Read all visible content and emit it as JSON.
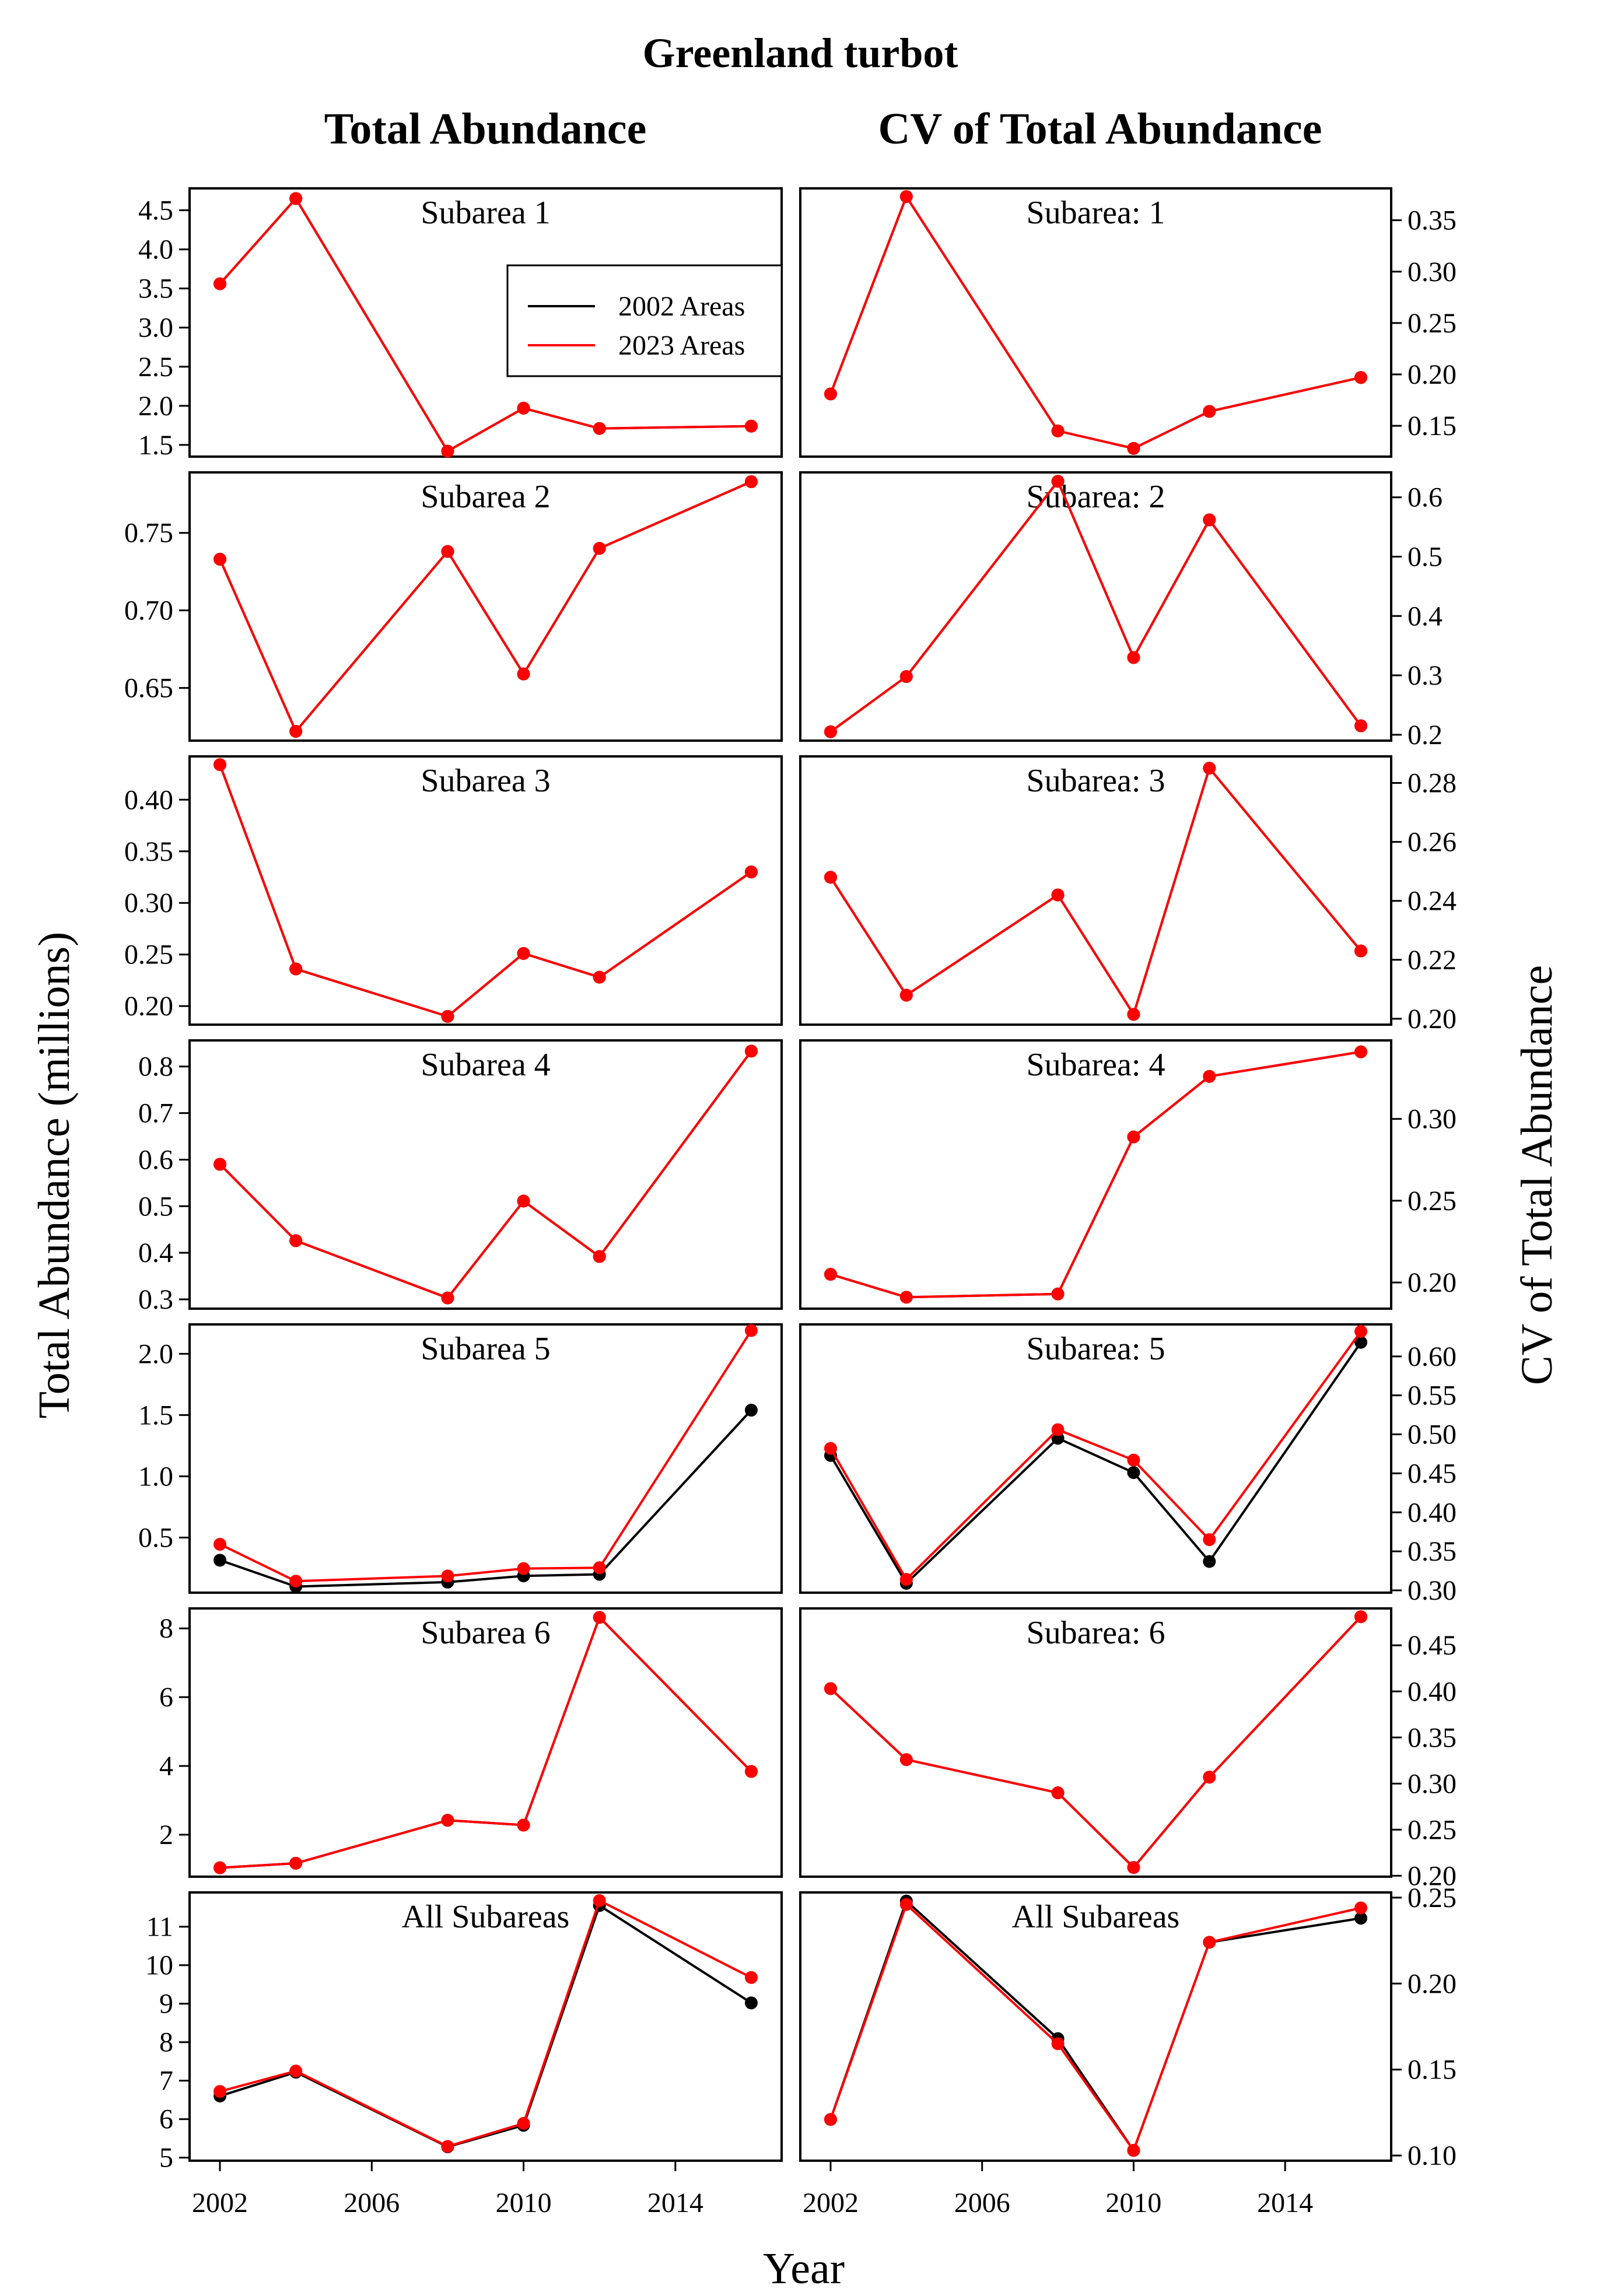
{
  "figure": {
    "title": "Greenland turbot",
    "col_titles": [
      "Total Abundance",
      "CV of Total Abundance"
    ],
    "ylabel_left": "Total Abundance (millions)",
    "ylabel_right": "CV of Total Abundance",
    "xlabel": "Year"
  },
  "legend": {
    "entries": [
      {
        "label": "2002 Areas",
        "color": "#000000"
      },
      {
        "label": "2023 Areas",
        "color": "#ff0000"
      }
    ],
    "placement": "top-right of Subarea 1 Total Abundance panel"
  },
  "colors": {
    "series_2002": "#000000",
    "series_2023": "#ff0000"
  },
  "chart_data": [
    {
      "type": "line",
      "panel": "Subarea 1",
      "column": "Total Abundance",
      "x": [
        2002,
        2004,
        2008,
        2010,
        2012,
        2016
      ],
      "series": [
        {
          "name": "2002 Areas",
          "values": [
            3.56,
            4.65,
            1.42,
            1.97,
            1.71,
            1.74
          ]
        },
        {
          "name": "2023 Areas",
          "values": [
            3.56,
            4.65,
            1.42,
            1.97,
            1.71,
            1.74
          ]
        }
      ],
      "ylim": [
        1.35,
        4.78
      ],
      "yticks": [
        1.5,
        2.0,
        2.5,
        3.0,
        3.5,
        4.0,
        4.5
      ],
      "ytick_labels": [
        "1.5",
        "2.0",
        "2.5",
        "3.0",
        "3.5",
        "4.0",
        "4.5"
      ]
    },
    {
      "type": "line",
      "panel": "Subarea: 1",
      "column": "CV of Total Abundance",
      "x": [
        2002,
        2004,
        2008,
        2010,
        2012,
        2016
      ],
      "series": [
        {
          "name": "2002 Areas",
          "values": [
            0.181,
            0.373,
            0.145,
            0.128,
            0.164,
            0.197
          ]
        },
        {
          "name": "2023 Areas",
          "values": [
            0.181,
            0.373,
            0.145,
            0.128,
            0.164,
            0.197
          ]
        }
      ],
      "ylim": [
        0.12,
        0.381
      ],
      "yticks": [
        0.15,
        0.2,
        0.25,
        0.3,
        0.35
      ],
      "ytick_labels": [
        "0.15",
        "0.20",
        "0.25",
        "0.30",
        "0.35"
      ]
    },
    {
      "type": "line",
      "panel": "Subarea 2",
      "column": "Total Abundance",
      "x": [
        2002,
        2004,
        2008,
        2010,
        2012,
        2016
      ],
      "series": [
        {
          "name": "2002 Areas",
          "values": [
            0.733,
            0.622,
            0.738,
            0.659,
            0.74,
            0.783
          ]
        },
        {
          "name": "2023 Areas",
          "values": [
            0.733,
            0.622,
            0.738,
            0.659,
            0.74,
            0.783
          ]
        }
      ],
      "ylim": [
        0.616,
        0.789
      ],
      "yticks": [
        0.65,
        0.7,
        0.75
      ],
      "ytick_labels": [
        "0.65",
        "0.70",
        "0.75"
      ]
    },
    {
      "type": "line",
      "panel": "Subarea: 2",
      "column": "CV of Total Abundance",
      "x": [
        2002,
        2004,
        2008,
        2010,
        2012,
        2016
      ],
      "series": [
        {
          "name": "2002 Areas",
          "values": [
            0.205,
            0.298,
            0.627,
            0.33,
            0.562,
            0.215
          ]
        },
        {
          "name": "2023 Areas",
          "values": [
            0.205,
            0.298,
            0.627,
            0.33,
            0.562,
            0.215
          ]
        }
      ],
      "ylim": [
        0.19,
        0.642
      ],
      "yticks": [
        0.2,
        0.3,
        0.4,
        0.5,
        0.6
      ],
      "ytick_labels": [
        "0.2",
        "0.3",
        "0.4",
        "0.5",
        "0.6"
      ]
    },
    {
      "type": "line",
      "panel": "Subarea 3",
      "column": "Total Abundance",
      "x": [
        2002,
        2004,
        2008,
        2010,
        2012,
        2016
      ],
      "series": [
        {
          "name": "2002 Areas",
          "values": [
            0.434,
            0.236,
            0.19,
            0.251,
            0.228,
            0.33
          ]
        },
        {
          "name": "2023 Areas",
          "values": [
            0.434,
            0.236,
            0.19,
            0.251,
            0.228,
            0.33
          ]
        }
      ],
      "ylim": [
        0.182,
        0.442
      ],
      "yticks": [
        0.2,
        0.25,
        0.3,
        0.35,
        0.4
      ],
      "ytick_labels": [
        "0.20",
        "0.25",
        "0.30",
        "0.35",
        "0.40"
      ]
    },
    {
      "type": "line",
      "panel": "Subarea: 3",
      "column": "CV of Total Abundance",
      "x": [
        2002,
        2004,
        2008,
        2010,
        2012,
        2016
      ],
      "series": [
        {
          "name": "2002 Areas",
          "values": [
            0.248,
            0.208,
            0.242,
            0.2015,
            0.285,
            0.223
          ]
        },
        {
          "name": "2023 Areas",
          "values": [
            0.248,
            0.208,
            0.242,
            0.2015,
            0.285,
            0.223
          ]
        }
      ],
      "ylim": [
        0.198,
        0.289
      ],
      "yticks": [
        0.2,
        0.22,
        0.24,
        0.26,
        0.28
      ],
      "ytick_labels": [
        "0.20",
        "0.22",
        "0.24",
        "0.26",
        "0.28"
      ]
    },
    {
      "type": "line",
      "panel": "Subarea 4",
      "column": "Total Abundance",
      "x": [
        2002,
        2004,
        2008,
        2010,
        2012,
        2016
      ],
      "series": [
        {
          "name": "2002 Areas",
          "values": [
            0.59,
            0.426,
            0.303,
            0.511,
            0.392,
            0.833
          ]
        },
        {
          "name": "2023 Areas",
          "values": [
            0.59,
            0.426,
            0.303,
            0.511,
            0.392,
            0.833
          ]
        }
      ],
      "ylim": [
        0.28,
        0.856
      ],
      "yticks": [
        0.3,
        0.4,
        0.5,
        0.6,
        0.7,
        0.8
      ],
      "ytick_labels": [
        "0.3",
        "0.4",
        "0.5",
        "0.6",
        "0.7",
        "0.8"
      ]
    },
    {
      "type": "line",
      "panel": "Subarea: 4",
      "column": "CV of Total Abundance",
      "x": [
        2002,
        2004,
        2008,
        2010,
        2012,
        2016
      ],
      "series": [
        {
          "name": "2002 Areas",
          "values": [
            0.205,
            0.191,
            0.193,
            0.289,
            0.326,
            0.341
          ]
        },
        {
          "name": "2023 Areas",
          "values": [
            0.205,
            0.191,
            0.193,
            0.289,
            0.326,
            0.341
          ]
        }
      ],
      "ylim": [
        0.184,
        0.348
      ],
      "yticks": [
        0.2,
        0.25,
        0.3
      ],
      "ytick_labels": [
        "0.20",
        "0.25",
        "0.30"
      ]
    },
    {
      "type": "line",
      "panel": "Subarea 5",
      "column": "Total Abundance",
      "x": [
        2002,
        2004,
        2008,
        2010,
        2012,
        2016
      ],
      "series": [
        {
          "name": "2002 Areas",
          "values": [
            0.315,
            0.1,
            0.136,
            0.187,
            0.2,
            1.54
          ]
        },
        {
          "name": "2023 Areas",
          "values": [
            0.445,
            0.144,
            0.186,
            0.247,
            0.254,
            2.19
          ]
        }
      ],
      "ylim": [
        0.05,
        2.24
      ],
      "yticks": [
        0.5,
        1.0,
        1.5,
        2.0
      ],
      "ytick_labels": [
        "0.5",
        "1.0",
        "1.5",
        "2.0"
      ]
    },
    {
      "type": "line",
      "panel": "Subarea: 5",
      "column": "CV of Total Abundance",
      "x": [
        2002,
        2004,
        2008,
        2010,
        2012,
        2016
      ],
      "series": [
        {
          "name": "2002 Areas",
          "values": [
            0.473,
            0.309,
            0.495,
            0.451,
            0.337,
            0.618
          ]
        },
        {
          "name": "2023 Areas",
          "values": [
            0.482,
            0.314,
            0.506,
            0.467,
            0.365,
            0.632
          ]
        }
      ],
      "ylim": [
        0.297,
        0.641
      ],
      "yticks": [
        0.3,
        0.35,
        0.4,
        0.45,
        0.5,
        0.55,
        0.6
      ],
      "ytick_labels": [
        "0.30",
        "0.35",
        "0.40",
        "0.45",
        "0.50",
        "0.55",
        "0.60"
      ]
    },
    {
      "type": "line",
      "panel": "Subarea 6",
      "column": "Total Abundance",
      "x": [
        2002,
        2004,
        2008,
        2010,
        2012,
        2016
      ],
      "series": [
        {
          "name": "2002 Areas",
          "values": [
            1.04,
            1.17,
            2.42,
            2.28,
            8.32,
            3.84
          ]
        },
        {
          "name": "2023 Areas",
          "values": [
            1.04,
            1.17,
            2.42,
            2.28,
            8.32,
            3.84
          ]
        }
      ],
      "ylim": [
        0.78,
        8.58
      ],
      "yticks": [
        2,
        4,
        6,
        8
      ],
      "ytick_labels": [
        "2",
        "4",
        "6",
        "8"
      ]
    },
    {
      "type": "line",
      "panel": "Subarea: 6",
      "column": "CV of Total Abundance",
      "x": [
        2002,
        2004,
        2008,
        2010,
        2012,
        2016
      ],
      "series": [
        {
          "name": "2002 Areas",
          "values": [
            0.403,
            0.326,
            0.29,
            0.209,
            0.307,
            0.481
          ]
        },
        {
          "name": "2023 Areas",
          "values": [
            0.403,
            0.326,
            0.29,
            0.209,
            0.307,
            0.481
          ]
        }
      ],
      "ylim": [
        0.199,
        0.49
      ],
      "yticks": [
        0.2,
        0.25,
        0.3,
        0.35,
        0.4,
        0.45
      ],
      "ytick_labels": [
        "0.20",
        "0.25",
        "0.30",
        "0.35",
        "0.40",
        "0.45"
      ]
    },
    {
      "type": "line",
      "panel": "All Subareas",
      "column": "Total Abundance",
      "x": [
        2002,
        2004,
        2008,
        2010,
        2012,
        2016
      ],
      "series": [
        {
          "name": "2002 Areas",
          "values": [
            6.6,
            7.22,
            5.28,
            5.84,
            11.55,
            9.02
          ]
        },
        {
          "name": "2023 Areas",
          "values": [
            6.72,
            7.25,
            5.29,
            5.89,
            11.68,
            9.68
          ]
        }
      ],
      "ylim": [
        4.92,
        11.89
      ],
      "yticks": [
        5,
        6,
        7,
        8,
        9,
        10,
        11
      ],
      "ytick_labels": [
        "5",
        "6",
        "7",
        "8",
        "9",
        "10",
        "11"
      ]
    },
    {
      "type": "line",
      "panel": "All Subareas",
      "column": "CV of Total Abundance",
      "x": [
        2002,
        2004,
        2008,
        2010,
        2012,
        2016
      ],
      "series": [
        {
          "name": "2002 Areas",
          "values": [
            0.121,
            0.248,
            0.168,
            0.103,
            0.224,
            0.238
          ]
        },
        {
          "name": "2023 Areas",
          "values": [
            0.121,
            0.246,
            0.165,
            0.103,
            0.224,
            0.244
          ]
        }
      ],
      "ylim": [
        0.097,
        0.253
      ],
      "yticks": [
        0.1,
        0.15,
        0.2,
        0.25
      ],
      "ytick_labels": [
        "0.10",
        "0.15",
        "0.20",
        "0.25"
      ]
    }
  ],
  "x_axis": {
    "xlim": [
      2001.2,
      2016.8
    ],
    "ticks": [
      2002,
      2006,
      2010,
      2014
    ],
    "tick_labels": [
      "2002",
      "2006",
      "2010",
      "2014"
    ]
  }
}
